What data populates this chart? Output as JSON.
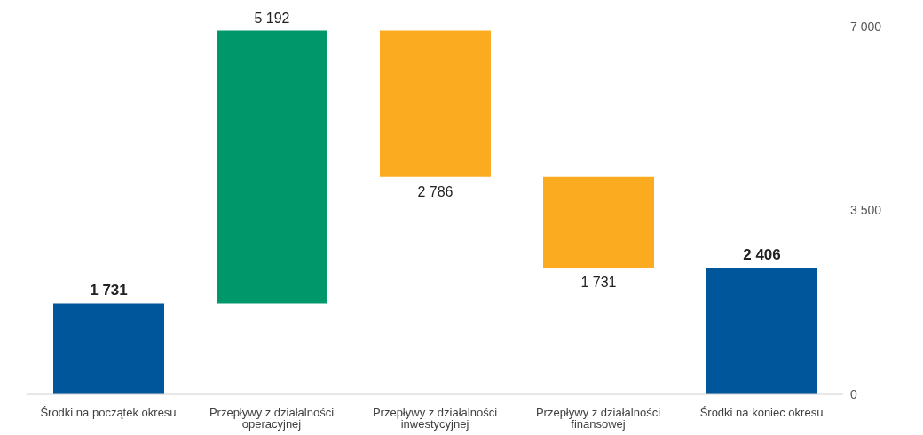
{
  "chart_data": {
    "type": "bar",
    "categories": [
      "Środki na początek okresu",
      "Przepływy z działalności operacyjnej",
      "Przepływy z działalności inwestycyjnej",
      "Przepływy z działalności finansowej",
      "Środki na koniec okresu"
    ],
    "base": [
      0,
      1731,
      6923,
      4137,
      0
    ],
    "values": [
      1731,
      5192,
      -2786,
      -1731,
      2406
    ],
    "colors": [
      "#00569b",
      "#00976b",
      "#fbab1f",
      "#fbab1f",
      "#00569b"
    ],
    "value_labels": [
      "1 731",
      "5 192",
      "2 786",
      "1 731",
      "2 406"
    ],
    "ylim": [
      0,
      7000
    ],
    "yticks": [
      {
        "value": 0,
        "label": "0"
      },
      {
        "value": 3500,
        "label": "3 500"
      },
      {
        "value": 7000,
        "label": "7 000"
      }
    ]
  }
}
